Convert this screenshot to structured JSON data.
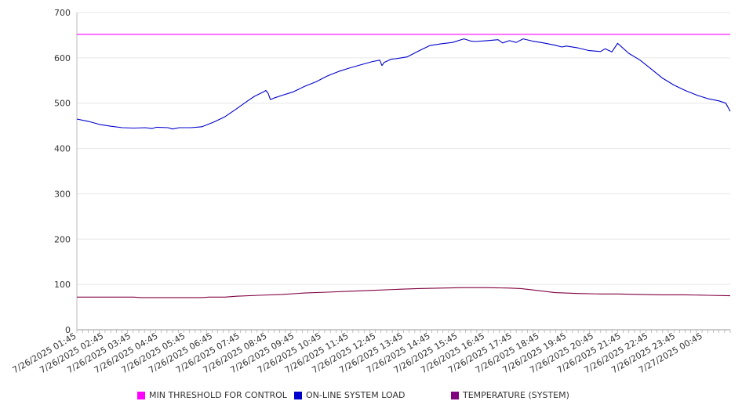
{
  "chart_data": {
    "type": "line",
    "ylim": [
      0,
      700
    ],
    "yticks": [
      0,
      100,
      200,
      300,
      400,
      500,
      600,
      700
    ],
    "x_tick_labels": [
      "7/26/2025 01:45",
      "7/26/2025 02:45",
      "7/26/2025 03:45",
      "7/26/2025 04:45",
      "7/26/2025 05:45",
      "7/26/2025 06:45",
      "7/26/2025 07:45",
      "7/26/2025 08:45",
      "7/26/2025 09:45",
      "7/26/2025 10:45",
      "7/26/2025 11:45",
      "7/26/2025 12:45",
      "7/26/2025 13:45",
      "7/26/2025 14:45",
      "7/26/2025 15:45",
      "7/26/2025 16:45",
      "7/26/2025 17:45",
      "7/26/2025 18:45",
      "7/26/2025 19:45",
      "7/26/2025 20:45",
      "7/26/2025 21:45",
      "7/26/2025 22:45",
      "7/26/2025 23:45",
      "7/27/2025 00:45"
    ],
    "x_range_hours": [
      0,
      23.75
    ],
    "grid": true,
    "legend_position": "bottom",
    "series": [
      {
        "name": "MIN THRESHOLD FOR CONTROL",
        "color": "#ff00ff",
        "points": [
          [
            0,
            652
          ],
          [
            23.75,
            652
          ]
        ]
      },
      {
        "name": "ON-LINE SYSTEM LOAD",
        "color": "#0000cc",
        "points": [
          [
            0,
            465
          ],
          [
            0.5,
            460
          ],
          [
            1,
            453
          ],
          [
            1.5,
            449
          ],
          [
            2,
            446
          ],
          [
            2.5,
            445
          ],
          [
            3,
            446
          ],
          [
            3.3,
            444
          ],
          [
            3.5,
            447
          ],
          [
            4,
            446
          ],
          [
            4.2,
            443
          ],
          [
            4.5,
            446
          ],
          [
            5,
            446
          ],
          [
            5.5,
            448
          ],
          [
            6,
            458
          ],
          [
            6.5,
            470
          ],
          [
            7,
            487
          ],
          [
            7.5,
            505
          ],
          [
            7.8,
            515
          ],
          [
            8,
            520
          ],
          [
            8.2,
            525
          ],
          [
            8.3,
            528
          ],
          [
            8.4,
            522
          ],
          [
            8.5,
            508
          ],
          [
            8.7,
            512
          ],
          [
            9,
            517
          ],
          [
            9.5,
            525
          ],
          [
            10,
            537
          ],
          [
            10.5,
            547
          ],
          [
            11,
            560
          ],
          [
            11.5,
            570
          ],
          [
            12,
            578
          ],
          [
            12.5,
            585
          ],
          [
            13,
            592
          ],
          [
            13.3,
            595
          ],
          [
            13.4,
            583
          ],
          [
            13.5,
            590
          ],
          [
            13.8,
            597
          ],
          [
            14,
            598
          ],
          [
            14.5,
            602
          ],
          [
            15,
            615
          ],
          [
            15.5,
            627
          ],
          [
            16,
            631
          ],
          [
            16.5,
            634
          ],
          [
            17,
            642
          ],
          [
            17.3,
            637
          ],
          [
            17.5,
            636
          ],
          [
            18,
            638
          ],
          [
            18.5,
            640
          ],
          [
            18.7,
            633
          ],
          [
            19,
            638
          ],
          [
            19.3,
            634
          ],
          [
            19.6,
            642
          ],
          [
            20,
            637
          ],
          [
            20.5,
            633
          ],
          [
            21,
            628
          ],
          [
            21.3,
            624
          ],
          [
            21.5,
            626
          ],
          [
            22,
            622
          ],
          [
            22.5,
            616
          ],
          [
            23,
            614
          ],
          [
            23.2,
            620
          ],
          [
            23.5,
            613
          ],
          [
            23.75,
            482
          ]
        ]
      },
      {
        "name": "TEMPERATURE (SYSTEM)",
        "color": "#800080",
        "points": []
      }
    ],
    "temperature_points": [
      [
        0,
        72
      ],
      [
        2.5,
        72
      ],
      [
        2.8,
        71
      ],
      [
        5.5,
        71
      ],
      [
        5.8,
        72
      ],
      [
        6.5,
        72
      ],
      [
        7,
        74
      ],
      [
        8,
        76
      ],
      [
        9,
        78
      ],
      [
        10,
        81
      ],
      [
        11,
        83
      ],
      [
        12,
        85
      ],
      [
        13,
        87
      ],
      [
        14,
        89
      ],
      [
        14.5,
        90
      ],
      [
        15,
        91
      ],
      [
        16,
        92
      ],
      [
        17,
        93
      ],
      [
        18,
        93
      ],
      [
        19,
        92
      ],
      [
        19.5,
        91
      ],
      [
        20,
        88
      ],
      [
        20.5,
        85
      ],
      [
        21,
        82
      ],
      [
        22,
        80
      ],
      [
        23,
        79
      ],
      [
        23.75,
        77
      ]
    ],
    "load_tail": [
      [
        24,
        632
      ],
      [
        24.5,
        610
      ],
      [
        25,
        595
      ],
      [
        25.5,
        575
      ],
      [
        26,
        555
      ],
      [
        26.5,
        540
      ],
      [
        27,
        528
      ],
      [
        27.5,
        518
      ],
      [
        28,
        510
      ],
      [
        28.5,
        505
      ],
      [
        28.8,
        500
      ],
      [
        29,
        482
      ]
    ],
    "temp_tail": [
      [
        24,
        79
      ],
      [
        25,
        78
      ],
      [
        26,
        77
      ],
      [
        27,
        77
      ],
      [
        28,
        76
      ],
      [
        29,
        75
      ]
    ]
  },
  "legend": [
    {
      "label": "MIN THRESHOLD FOR CONTROL",
      "color": "#ff00ff"
    },
    {
      "label": "ON-LINE SYSTEM LOAD",
      "color": "#0000cc"
    },
    {
      "label": "TEMPERATURE (SYSTEM)",
      "color": "#800080"
    }
  ]
}
